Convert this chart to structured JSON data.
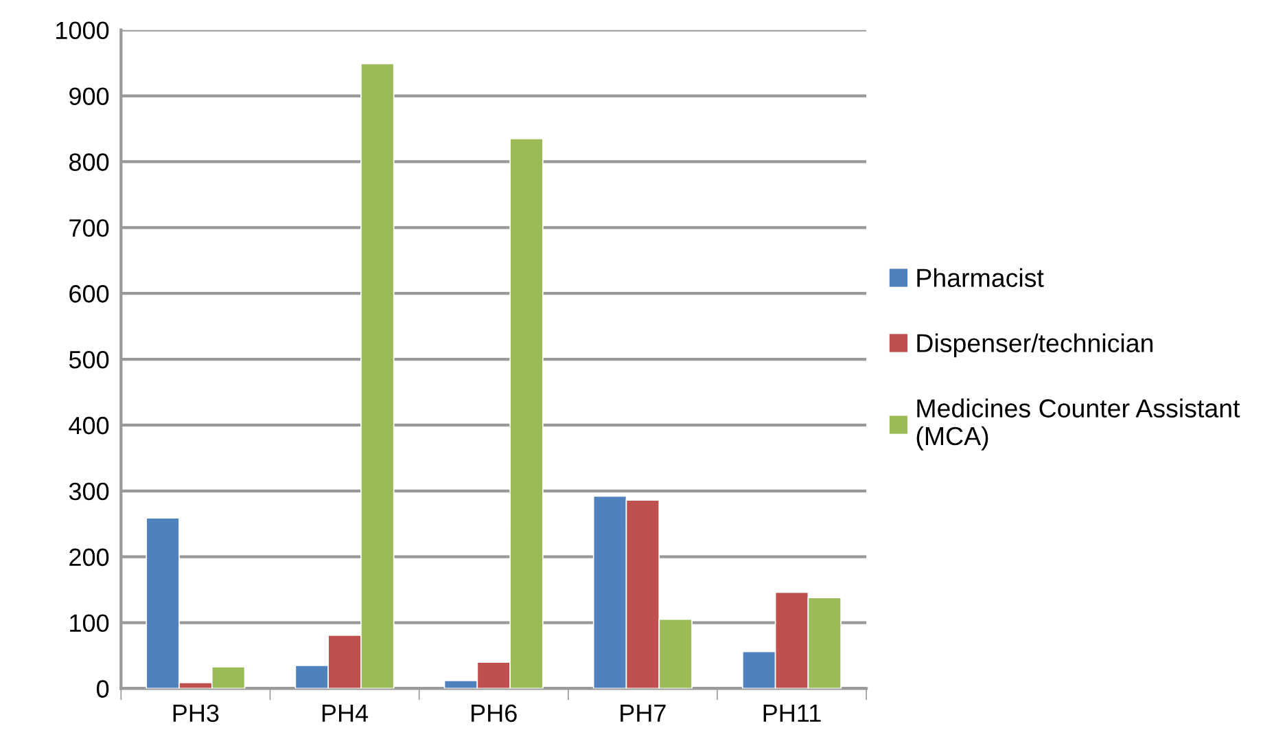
{
  "chart_data": {
    "type": "bar",
    "categories": [
      "PH3",
      "PH4",
      "PH6",
      "PH7",
      "PH11"
    ],
    "series": [
      {
        "name": "Pharmacist",
        "color": "#4f81bd",
        "values": [
          259,
          35,
          12,
          292,
          56
        ]
      },
      {
        "name": "Dispenser/technician",
        "color": "#c0504d",
        "values": [
          9,
          81,
          40,
          286,
          146
        ]
      },
      {
        "name": "Medicines Counter Assistant (MCA)",
        "color": "#9bbb59",
        "values": [
          33,
          949,
          835,
          105,
          138
        ]
      }
    ],
    "ylim": [
      0,
      1000
    ],
    "yticks": [
      0,
      100,
      200,
      300,
      400,
      500,
      600,
      700,
      800,
      900,
      1000
    ],
    "grid": "y",
    "legend": "right"
  }
}
